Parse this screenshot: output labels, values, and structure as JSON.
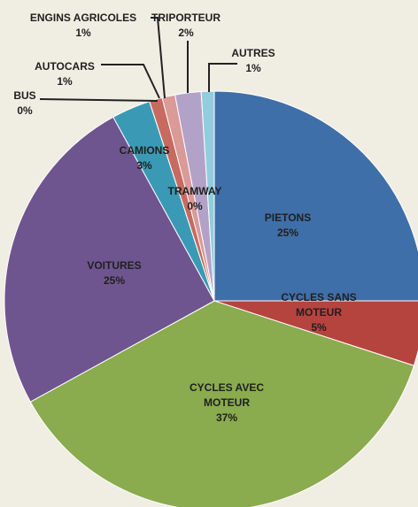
{
  "chart_data": {
    "type": "pie",
    "categories": [
      "PIETONS",
      "CYCLES SANS MOTEUR",
      "CYCLES AVEC MOTEUR",
      "VOITURES",
      "CAMIONS",
      "TRAMWAY",
      "BUS",
      "AUTOCARS",
      "ENGINS AGRICOLES",
      "TRIPORTEUR",
      "AUTRES"
    ],
    "values": [
      25,
      5,
      37,
      25,
      3,
      0,
      0,
      1,
      1,
      2,
      1
    ],
    "value_labels": [
      "25%",
      "5%",
      "37%",
      "25%",
      "3%",
      "0%",
      "0%",
      "1%",
      "1%",
      "2%",
      "1%"
    ],
    "colors": [
      "#3f6fa8",
      "#b5443f",
      "#8aab4e",
      "#6e5590",
      "#3a9ab5",
      "#7fb8d8",
      "#2e5f8e",
      "#c76a60",
      "#d99a98",
      "#b3a2c7",
      "#93cddd"
    ]
  }
}
